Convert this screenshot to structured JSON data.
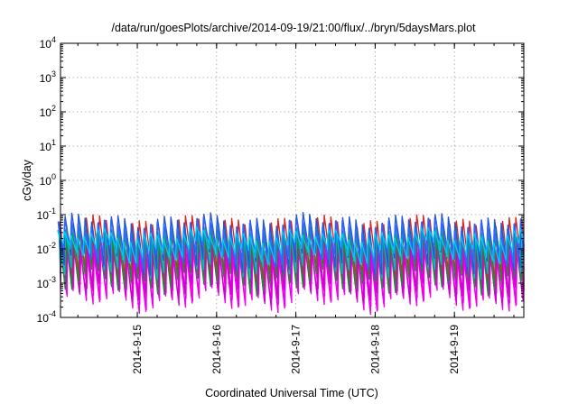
{
  "chart_data": {
    "type": "line",
    "title": "/data/run/goesPlots/archive/2014-09-19/21:00/flux/../bryn/5daysMars.plot",
    "xlabel": "Coordinated Universal Time (UTC)",
    "ylabel": "cGy/day",
    "yscale": "log",
    "ylim": [
      0.0001,
      10000
    ],
    "xlim": [
      "2014-09-14 00:45",
      "2014-09-19 21:00"
    ],
    "grid": true,
    "legend": "none",
    "x_ticks": [
      "2014-9-15",
      "2014-9-16",
      "2014-9-17",
      "2014-9-18",
      "2014-9-19"
    ],
    "y_ticks": [
      {
        "base": "10",
        "exp": "-4",
        "value": 0.0001
      },
      {
        "base": "10",
        "exp": "-3",
        "value": 0.001
      },
      {
        "base": "10",
        "exp": "-2",
        "value": 0.01
      },
      {
        "base": "10",
        "exp": "-1",
        "value": 0.1
      },
      {
        "base": "10",
        "exp": "0",
        "value": 1
      },
      {
        "base": "10",
        "exp": "1",
        "value": 10
      },
      {
        "base": "10",
        "exp": "2",
        "value": 100
      },
      {
        "base": "10",
        "exp": "3",
        "value": 1000
      },
      {
        "base": "10",
        "exp": "4",
        "value": 10000
      }
    ],
    "sawtooth_period_hours": 2,
    "series": [
      {
        "color": "#ff00ff",
        "peak": 0.012,
        "trough": 0.0004
      },
      {
        "color": "#ee00ee",
        "peak": 0.008,
        "trough": 0.0003
      },
      {
        "color": "#cc00cc",
        "peak": 0.015,
        "trough": 0.0006
      },
      {
        "color": "#dd2222",
        "peak": 0.06,
        "trough": 0.002
      },
      {
        "color": "#228833",
        "peak": 0.03,
        "trough": 0.001
      },
      {
        "color": "#00bbcc",
        "peak": 0.04,
        "trough": 0.003
      },
      {
        "color": "#2255dd",
        "peak": 0.07,
        "trough": 0.004
      },
      {
        "color": "#3366ff",
        "peak": 0.05,
        "trough": 0.006
      },
      {
        "color": "#00ccee",
        "peak": 0.025,
        "trough": 0.008
      }
    ]
  }
}
